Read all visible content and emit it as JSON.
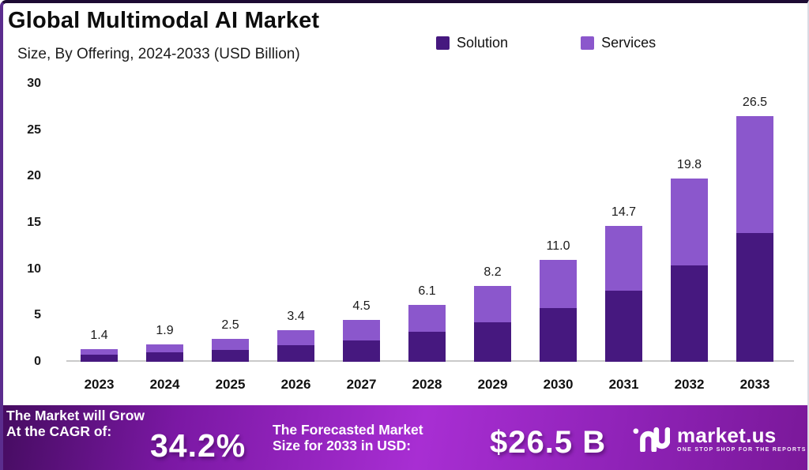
{
  "page": {
    "title": "Global Multimodal AI Market",
    "subtitle": "Size, By Offering, 2024-2033 (USD Billion)"
  },
  "legend": [
    {
      "label": "Solution",
      "color": "#46187f"
    },
    {
      "label": "Services",
      "color": "#8b57cc"
    }
  ],
  "chart_data": {
    "type": "bar",
    "stacked": true,
    "title": "Global Multimodal AI Market",
    "subtitle": "Size, By Offering, 2024-2033 (USD Billion)",
    "unit": "USD Billion",
    "categories": [
      "2023",
      "2024",
      "2025",
      "2026",
      "2027",
      "2028",
      "2029",
      "2030",
      "2031",
      "2032",
      "2033"
    ],
    "series": [
      {
        "name": "Solution",
        "color": "#46187f",
        "values": [
          0.8,
          1.0,
          1.3,
          1.8,
          2.3,
          3.2,
          4.3,
          5.8,
          7.7,
          10.4,
          13.9
        ]
      },
      {
        "name": "Services",
        "color": "#8b57cc",
        "values": [
          0.6,
          0.9,
          1.2,
          1.6,
          2.2,
          2.9,
          3.9,
          5.2,
          7.0,
          9.4,
          12.6
        ]
      }
    ],
    "totals": [
      1.4,
      1.9,
      2.5,
      3.4,
      4.5,
      6.1,
      8.2,
      11.0,
      14.7,
      19.8,
      26.5
    ],
    "total_labels": [
      "1.4",
      "1.9",
      "2.5",
      "3.4",
      "4.5",
      "6.1",
      "8.2",
      "11.0",
      "14.7",
      "19.8",
      "26.5"
    ],
    "yticks": [
      0,
      5,
      10,
      15,
      20,
      25,
      30
    ],
    "ylim": [
      0,
      30
    ],
    "grid": false,
    "legend_position": "top-right",
    "baseline_color": "#c9c9c9"
  },
  "banner": {
    "cagr_intro_line1": "The Market will Grow",
    "cagr_intro_line2": "At the CAGR of:",
    "cagr_value": "34.2%",
    "forecast_intro_line1": "The Forecasted Market",
    "forecast_intro_line2": "Size for 2033 in USD:",
    "forecast_value": "$26.5 B",
    "gradient_colors": [
      "#450c60",
      "#a82ed3",
      "#7a1899"
    ]
  },
  "logo": {
    "name": "market.us",
    "tagline": "ONE STOP SHOP FOR THE REPORTS",
    "mark": "nu-monogram"
  }
}
